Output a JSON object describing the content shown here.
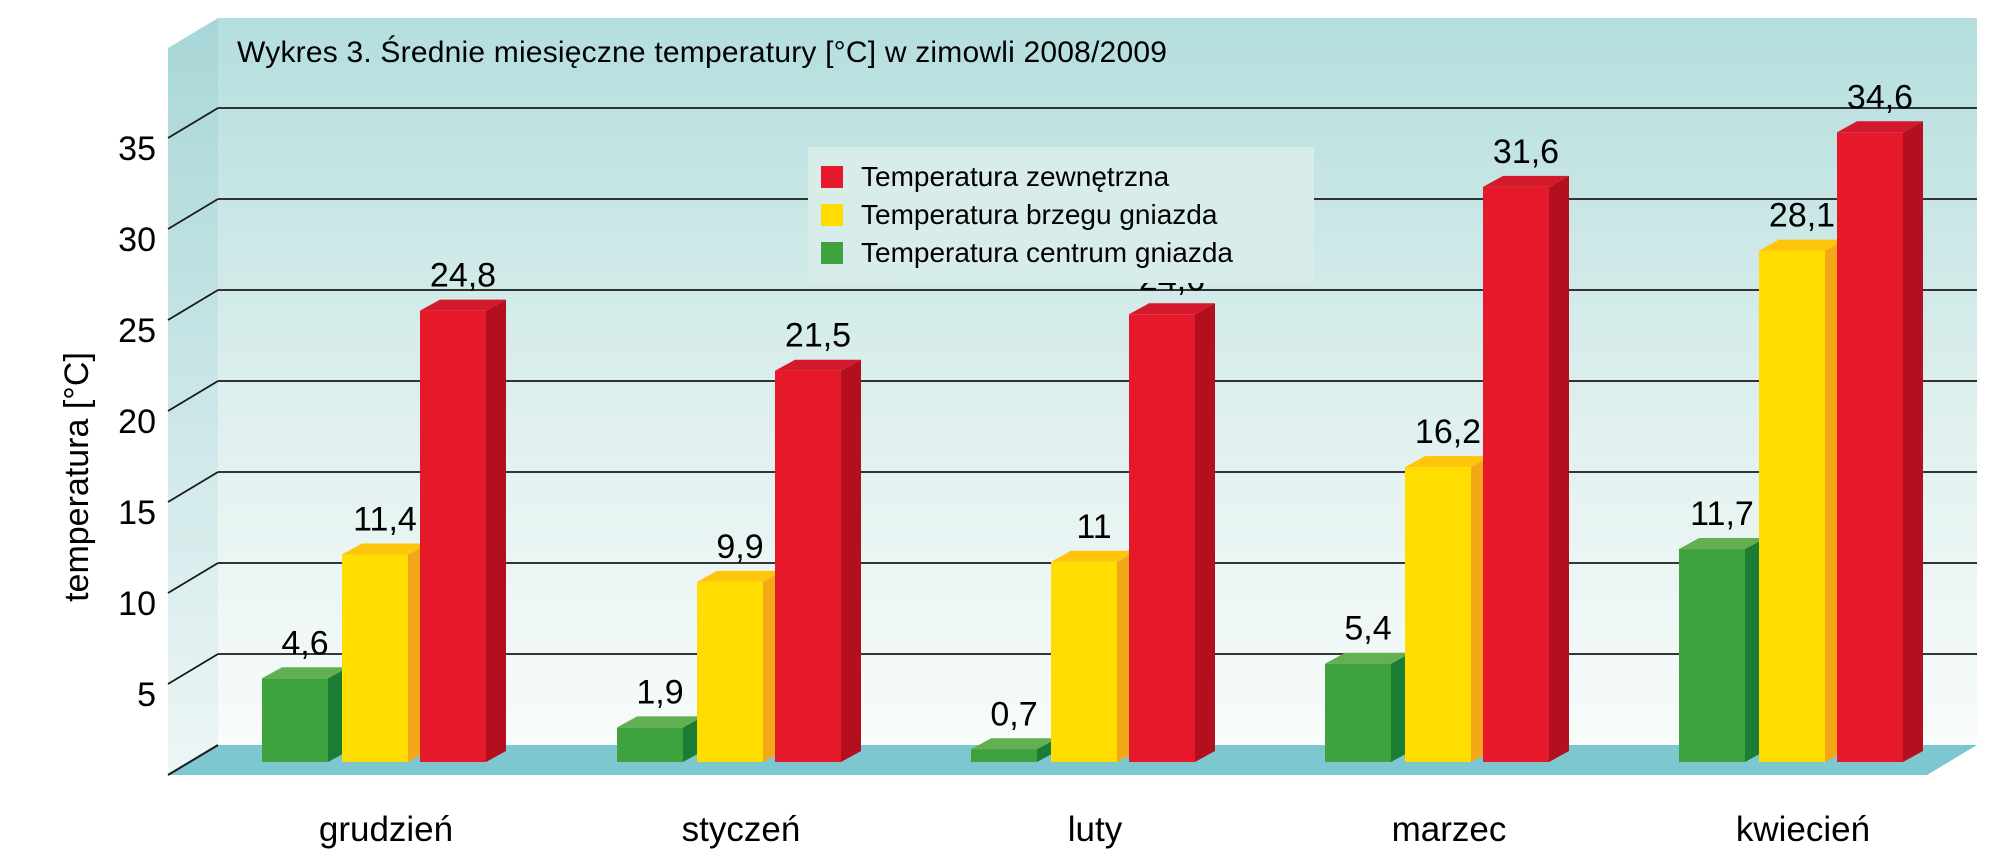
{
  "title": "Wykres 3. Średnie miesięczne temperatury [°C] w zimowli 2008/2009",
  "chart_data": {
    "type": "bar",
    "effect": "3d-clustered-columns",
    "title": "Wykres 3. Średnie miesięczne temperatury [°C] w zimowli 2008/2009",
    "categories": [
      "grudzień",
      "styczeń",
      "luty",
      "marzec",
      "kwiecień"
    ],
    "series": [
      {
        "name": "Temperatura zewnętrzna",
        "color": "#e6192b",
        "color_top": "#d31a2c",
        "color_side": "#b30f1f",
        "values": [
          24.8,
          21.5,
          24.6,
          31.6,
          34.6
        ],
        "labels": [
          "24,8",
          "21,5",
          "24,6",
          "31,6",
          "34,6"
        ]
      },
      {
        "name": "Temperatura brzegu gniazda",
        "color": "#ffdd00",
        "color_top": "#ffc50a",
        "color_side": "#f4a818",
        "values": [
          11.4,
          9.9,
          11,
          16.2,
          28.1
        ],
        "labels": [
          "11,4",
          "9,9",
          "11",
          "16,2",
          "28,1"
        ]
      },
      {
        "name": "Temperatura centrum gniazda",
        "color": "#3ea23f",
        "color_top": "#63b052",
        "color_side": "#1b7d34",
        "values": [
          4.6,
          1.9,
          0.7,
          5.4,
          11.7
        ],
        "labels": [
          "4,6",
          "1,9",
          "0,7",
          "5,4",
          "11,7"
        ]
      }
    ],
    "ylabel": "temperatura [°C]",
    "ylim": [
      0,
      40
    ],
    "yticks": [
      5,
      10,
      15,
      20,
      25,
      30,
      35
    ],
    "grid": true,
    "legend_position": "top-center",
    "colors": {
      "back_wall_top": "#b4dede",
      "back_wall_mid": "#dff0ee",
      "back_wall_bottom": "#f8fcfb",
      "side_wall_top": "#a8d6d8",
      "side_wall_bottom": "#eef6f6",
      "floor": "#7dc8d0",
      "legend_bg": "#d8ece9",
      "gridline": "#1a1a1a",
      "text": "#000000"
    }
  }
}
